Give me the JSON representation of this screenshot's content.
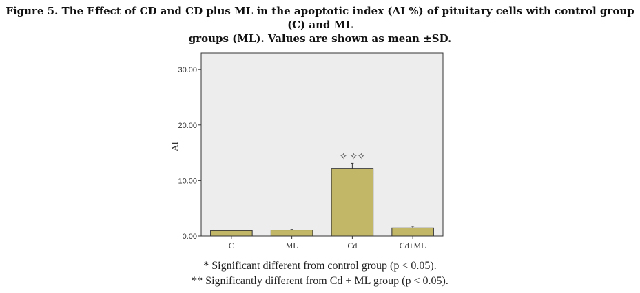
{
  "figure": {
    "caption_line1": "Figure 5. The Effect of CD and CD plus ML in the apoptotic index (AI %) of pituitary cells with control group (C) and ML",
    "caption_line2": "groups (ML). Values are shown as mean ±SD."
  },
  "notes": {
    "note1": "* Significant different from control group (p < 0.05).",
    "note2": "** Significantly different from Cd + ML group (p < 0.05)."
  },
  "colors": {
    "bar_fill": "#c2b766",
    "plot_bg": "#ededed",
    "axis": "#333333"
  },
  "chart_data": {
    "type": "bar",
    "categories": [
      "C",
      "ML",
      "Cd",
      "Cd+ML"
    ],
    "values": [
      0.95,
      1.05,
      12.2,
      1.45
    ],
    "errors": [
      0.1,
      0.1,
      0.9,
      0.3
    ],
    "significance_marks": [
      "",
      "",
      "✧ ✧✧",
      ""
    ],
    "ylabel": "AI",
    "xlabel": "",
    "ylim": [
      0,
      33
    ],
    "yticks": [
      "0.00",
      "10.00",
      "20.00",
      "30.00"
    ],
    "ytick_values": [
      0,
      10,
      20,
      30
    ],
    "grid": false,
    "legend": "none"
  }
}
